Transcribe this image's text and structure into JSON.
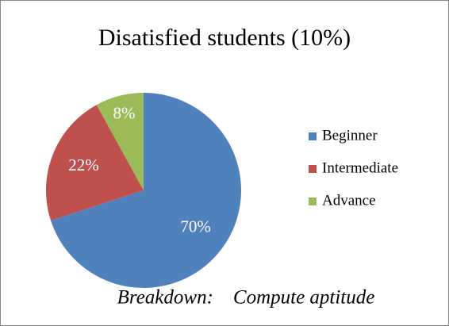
{
  "chart_data": {
    "type": "pie",
    "title": "Disatisfied students (10%)",
    "xlabel": "Breakdown:    Compute aptitude",
    "categories": [
      "Beginner",
      "Intermediate",
      "Advance"
    ],
    "values": [
      70,
      22,
      8
    ],
    "value_labels": [
      "70%",
      "22%",
      "8%"
    ],
    "colors": [
      "#4f81bd",
      "#c0504d",
      "#9bbb59"
    ],
    "legend": "right"
  }
}
